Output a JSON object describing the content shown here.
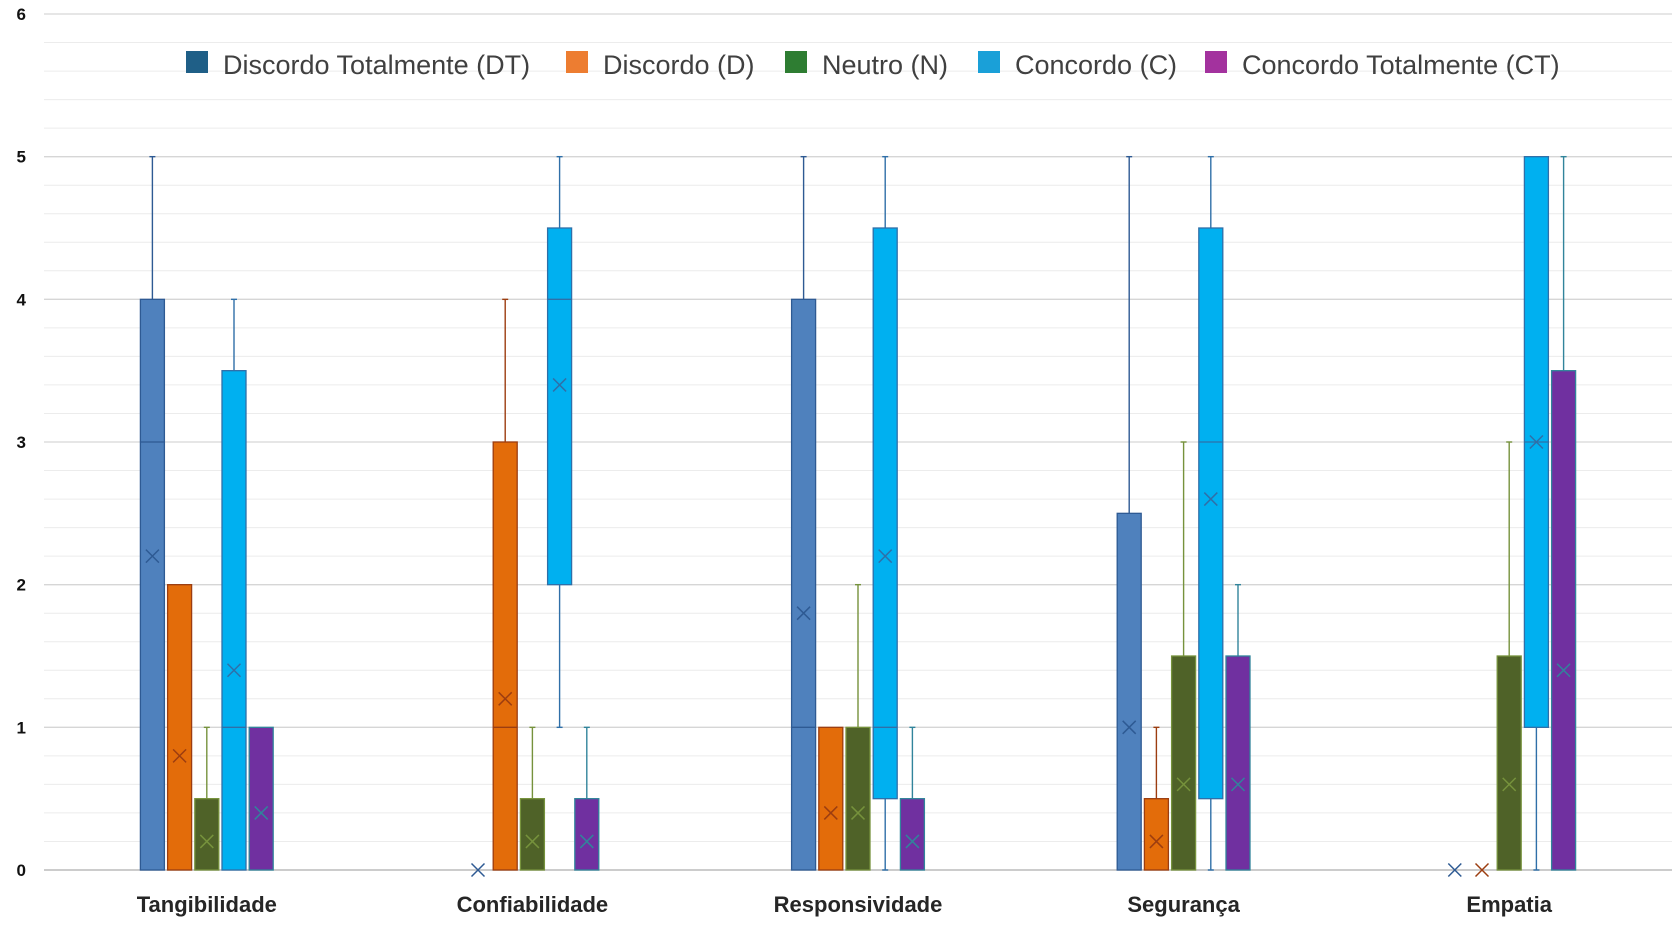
{
  "chart_data": {
    "type": "box",
    "categories": [
      "Tangibilidade",
      "Confiabilidade",
      "Responsividade",
      "Segurança",
      "Empatia"
    ],
    "ylim": [
      0,
      6
    ],
    "yticks": [
      "0",
      "1",
      "2",
      "3",
      "4",
      "5",
      "6"
    ],
    "grid": true,
    "legend_position": "top",
    "series": [
      {
        "name": "Discordo Totalmente (DT)",
        "legend_color": "#1f5f87",
        "box_color": "#4f81bd",
        "stroke_color": "#2e5a93",
        "boxes": [
          {
            "min": 0,
            "q1": 0,
            "median": 3,
            "q3": 4,
            "max": 5,
            "mean": 2.2
          },
          {
            "min": 0,
            "q1": 0,
            "median": 0,
            "q3": 0,
            "max": 0,
            "mean": 0
          },
          {
            "min": 0,
            "q1": 0,
            "median": 1,
            "q3": 4,
            "max": 5,
            "mean": 1.8
          },
          {
            "min": 0,
            "q1": 0,
            "median": 0,
            "q3": 2.5,
            "max": 5,
            "mean": 1
          },
          {
            "min": 0,
            "q1": 0,
            "median": 0,
            "q3": 0,
            "max": 0,
            "mean": 0
          }
        ]
      },
      {
        "name": "Discordo (D)",
        "legend_color": "#ed7d31",
        "box_color": "#e36c0a",
        "stroke_color": "#9c3d10",
        "boxes": [
          {
            "min": 0,
            "q1": 0,
            "median": 0,
            "q3": 2,
            "max": 2,
            "mean": 0.8
          },
          {
            "min": 0,
            "q1": 0,
            "median": 1,
            "q3": 3,
            "max": 4,
            "mean": 1.2
          },
          {
            "min": 0,
            "q1": 0,
            "median": 0,
            "q3": 1,
            "max": 1,
            "mean": 0.4
          },
          {
            "min": 0,
            "q1": 0,
            "median": 0,
            "q3": 0.5,
            "max": 1,
            "mean": 0.2
          },
          {
            "min": 0,
            "q1": 0,
            "median": 0,
            "q3": 0,
            "max": 0,
            "mean": 0
          }
        ]
      },
      {
        "name": "Neutro (N)",
        "legend_color": "#2e7d32",
        "box_color": "#4f6228",
        "stroke_color": "#76923c",
        "boxes": [
          {
            "min": 0,
            "q1": 0,
            "median": 0,
            "q3": 0.5,
            "max": 1,
            "mean": 0.2
          },
          {
            "min": 0,
            "q1": 0,
            "median": 0,
            "q3": 0.5,
            "max": 1,
            "mean": 0.2
          },
          {
            "min": 0,
            "q1": 0,
            "median": 0,
            "q3": 1,
            "max": 2,
            "mean": 0.4
          },
          {
            "min": 0,
            "q1": 0,
            "median": 0,
            "q3": 1.5,
            "max": 3,
            "mean": 0.6
          },
          {
            "min": 0,
            "q1": 0,
            "median": 0,
            "q3": 1.5,
            "max": 3,
            "mean": 0.6
          }
        ]
      },
      {
        "name": "Concordo (C)",
        "legend_color": "#1aa0d8",
        "box_color": "#00b0f0",
        "stroke_color": "#2f6fa8",
        "boxes": [
          {
            "min": 0,
            "q1": 0,
            "median": 1,
            "q3": 3.5,
            "max": 4,
            "mean": 1.4
          },
          {
            "min": 1,
            "q1": 2,
            "median": 4,
            "q3": 4.5,
            "max": 5,
            "mean": 3.4
          },
          {
            "min": 0,
            "q1": 0.5,
            "median": 1,
            "q3": 4.5,
            "max": 5,
            "mean": 2.2
          },
          {
            "min": 0,
            "q1": 0.5,
            "median": 3,
            "q3": 4.5,
            "max": 5,
            "mean": 2.6
          },
          {
            "min": 0,
            "q1": 1,
            "median": 3,
            "q3": 5,
            "max": 5,
            "mean": 3
          }
        ]
      },
      {
        "name": "Concordo Totalmente (CT)",
        "legend_color": "#a3329e",
        "box_color": "#7030a0",
        "stroke_color": "#31849b",
        "boxes": [
          {
            "min": 0,
            "q1": 0,
            "median": 0,
            "q3": 1,
            "max": 1,
            "mean": 0.4
          },
          {
            "min": 0,
            "q1": 0,
            "median": 0,
            "q3": 0.5,
            "max": 1,
            "mean": 0.2
          },
          {
            "min": 0,
            "q1": 0,
            "median": 0,
            "q3": 0.5,
            "max": 1,
            "mean": 0.2
          },
          {
            "min": 0,
            "q1": 0,
            "median": 0,
            "q3": 1.5,
            "max": 2,
            "mean": 0.6
          },
          {
            "min": 0,
            "q1": 0,
            "median": 0,
            "q3": 3.5,
            "max": 5,
            "mean": 1.4
          }
        ]
      }
    ]
  }
}
